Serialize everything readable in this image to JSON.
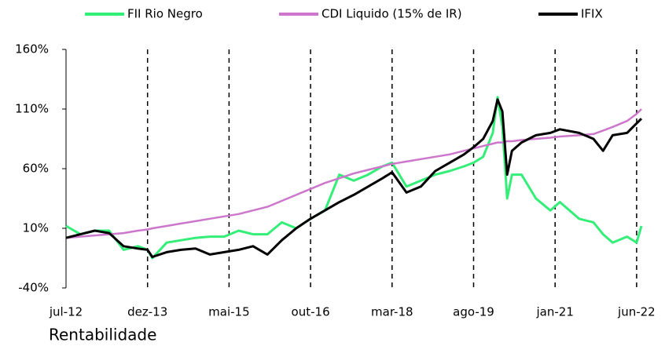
{
  "chart_data": {
    "type": "line",
    "title": "Rentabilidade",
    "x": [
      "2012-07",
      "2012-10",
      "2013-01",
      "2013-04",
      "2013-07",
      "2013-10",
      "2013-12",
      "2014-01",
      "2014-04",
      "2014-07",
      "2014-10",
      "2015-01",
      "2015-04",
      "2015-07",
      "2015-10",
      "2016-01",
      "2016-04",
      "2016-07",
      "2016-10",
      "2017-01",
      "2017-04",
      "2017-07",
      "2017-10",
      "2018-01",
      "2018-03",
      "2018-06",
      "2018-09",
      "2018-12",
      "2019-03",
      "2019-06",
      "2019-08",
      "2019-10",
      "2019-12",
      "2020-01",
      "2020-02",
      "2020-03",
      "2020-04",
      "2020-06",
      "2020-09",
      "2020-12",
      "2021-02",
      "2021-06",
      "2021-09",
      "2021-11",
      "2022-01",
      "2022-04",
      "2022-06",
      "2022-07"
    ],
    "series": [
      {
        "name": "FII Rio Negro",
        "color": "#33ee77",
        "values": [
          12,
          5,
          8,
          8,
          -8,
          -5,
          -8,
          -15,
          -2,
          0,
          2,
          3,
          3,
          8,
          5,
          5,
          15,
          10,
          18,
          25,
          55,
          50,
          55,
          62,
          65,
          45,
          50,
          55,
          58,
          62,
          65,
          70,
          90,
          120,
          95,
          35,
          55,
          55,
          35,
          25,
          32,
          18,
          15,
          5,
          -2,
          3,
          -2,
          12
        ]
      },
      {
        "name": "CDI Liquido (15% de IR)",
        "color": "#cc77cc",
        "values": [
          2,
          3,
          4,
          5,
          6,
          8,
          9,
          10,
          12,
          14,
          16,
          18,
          20,
          22,
          25,
          28,
          33,
          38,
          43,
          48,
          52,
          56,
          59,
          62,
          64,
          66,
          68,
          70,
          72,
          75,
          77,
          79,
          81,
          82,
          82,
          83,
          83,
          84,
          85,
          86,
          87,
          88,
          89,
          92,
          95,
          100,
          106,
          110
        ]
      },
      {
        "name": "IFIX",
        "color": "#000000",
        "values": [
          2,
          5,
          8,
          6,
          -5,
          -7,
          -8,
          -14,
          -10,
          -8,
          -7,
          -12,
          -10,
          -8,
          -5,
          -12,
          0,
          10,
          18,
          25,
          32,
          38,
          45,
          52,
          57,
          40,
          45,
          58,
          65,
          72,
          78,
          85,
          100,
          118,
          108,
          55,
          75,
          82,
          88,
          90,
          93,
          90,
          85,
          75,
          88,
          90,
          98,
          102
        ]
      }
    ],
    "ylim": [
      -40,
      160
    ],
    "yticks": [
      {
        "value": -40,
        "label": "-40%"
      },
      {
        "value": 10,
        "label": "10%"
      },
      {
        "value": 60,
        "label": "60%"
      },
      {
        "value": 110,
        "label": "110%"
      },
      {
        "value": 160,
        "label": "160%"
      }
    ],
    "xlim": [
      "2012-07",
      "2022-07"
    ],
    "xticks": [
      {
        "value": "2012-07",
        "label": "jul-12"
      },
      {
        "value": "2013-12",
        "label": "dez-13"
      },
      {
        "value": "2015-05",
        "label": "mai-15"
      },
      {
        "value": "2016-10",
        "label": "out-16"
      },
      {
        "value": "2018-03",
        "label": "mar-18"
      },
      {
        "value": "2019-08",
        "label": "ago-19"
      },
      {
        "value": "2021-01",
        "label": "jan-21"
      },
      {
        "value": "2022-06",
        "label": "jun-22"
      }
    ],
    "legend": "top"
  }
}
